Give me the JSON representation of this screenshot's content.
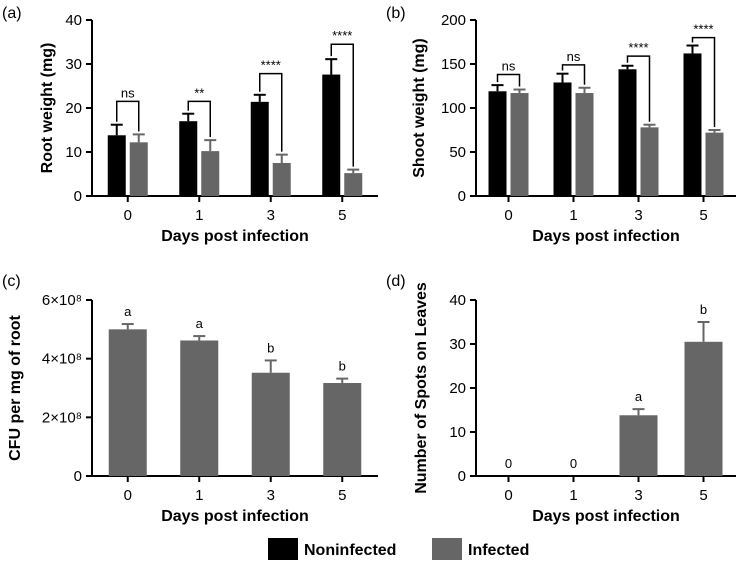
{
  "legend": {
    "noninfected": {
      "label": "Noninfected",
      "color": "#000000"
    },
    "infected": {
      "label": "Infected",
      "color": "#666666"
    }
  },
  "chart_data": [
    {
      "type": "bar",
      "panel_label": "(a)",
      "title": "",
      "xlabel": "Days post infection",
      "ylabel": "Root weight (mg)",
      "ylim": [
        0,
        40
      ],
      "yticks": [
        0,
        10,
        20,
        30,
        40
      ],
      "ytick_labels": [
        "0",
        "10",
        "20",
        "30",
        "40"
      ],
      "categories": [
        "0",
        "1",
        "3",
        "5"
      ],
      "series": [
        {
          "name": "Noninfected",
          "values": [
            13.8,
            17.0,
            21.4,
            27.6
          ],
          "errors": [
            2.4,
            1.7,
            1.6,
            3.5
          ]
        },
        {
          "name": "Infected",
          "values": [
            12.2,
            10.2,
            7.5,
            5.2
          ],
          "errors": [
            1.8,
            2.5,
            1.9,
            0.8
          ]
        }
      ],
      "significance": [
        "ns",
        "**",
        "****",
        "****"
      ],
      "bracket_tops": [
        21.5,
        21.5,
        27.8,
        34.5
      ],
      "letters": null
    },
    {
      "type": "bar",
      "panel_label": "(b)",
      "title": "",
      "xlabel": "Days post infection",
      "ylabel": "Shoot weight (mg)",
      "ylim": [
        0,
        200
      ],
      "yticks": [
        0,
        50,
        100,
        150,
        200
      ],
      "ytick_labels": [
        "0",
        "50",
        "100",
        "150",
        "200"
      ],
      "categories": [
        "0",
        "1",
        "3",
        "5"
      ],
      "series": [
        {
          "name": "Noninfected",
          "values": [
            119,
            129,
            144,
            162
          ],
          "errors": [
            7,
            10,
            4,
            9
          ]
        },
        {
          "name": "Infected",
          "values": [
            117,
            117,
            78,
            72
          ],
          "errors": [
            4,
            6,
            3,
            3
          ]
        }
      ],
      "significance": [
        "ns",
        "ns",
        "****",
        "****"
      ],
      "bracket_tops": [
        138,
        149,
        159,
        180
      ],
      "letters": null
    },
    {
      "type": "bar",
      "panel_label": "(c)",
      "title": "",
      "xlabel": "Days post infection",
      "ylabel": "CFU per mg of root",
      "ylim": [
        0,
        600000000
      ],
      "yticks": [
        0,
        200000000,
        400000000,
        600000000
      ],
      "ytick_labels": [
        "0",
        "2×10⁸",
        "4×10⁸",
        "6×10⁸"
      ],
      "categories": [
        "0",
        "1",
        "3",
        "5"
      ],
      "series": [
        {
          "name": "Infected",
          "values": [
            500000000,
            462000000,
            352000000,
            317000000
          ],
          "errors": [
            18000000,
            15000000,
            42000000,
            15000000
          ]
        }
      ],
      "significance": null,
      "bracket_tops": null,
      "letters": [
        "a",
        "a",
        "b",
        "b"
      ]
    },
    {
      "type": "bar",
      "panel_label": "(d)",
      "title": "",
      "xlabel": "Days post infection",
      "ylabel": "Number of Spots on Leaves",
      "ylim": [
        0,
        40
      ],
      "yticks": [
        0,
        10,
        20,
        30,
        40
      ],
      "ytick_labels": [
        "0",
        "10",
        "20",
        "30",
        "40"
      ],
      "categories": [
        "0",
        "1",
        "3",
        "5"
      ],
      "series": [
        {
          "name": "Infected",
          "values": [
            0,
            0,
            13.8,
            30.5
          ],
          "errors": [
            0,
            0,
            1.4,
            4.5
          ]
        }
      ],
      "significance": null,
      "bracket_tops": null,
      "letters": [
        "0",
        "0",
        "a",
        "b"
      ]
    }
  ]
}
